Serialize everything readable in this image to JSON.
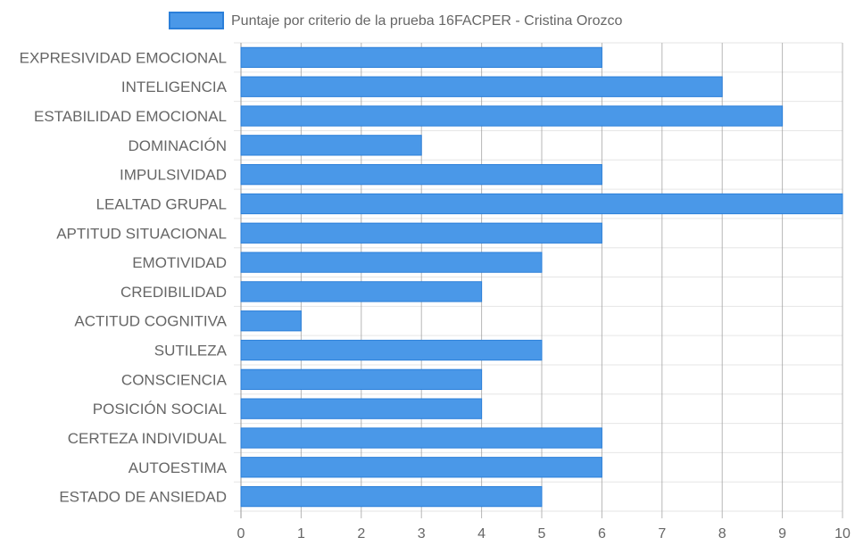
{
  "chart_data": {
    "type": "bar",
    "orientation": "horizontal",
    "title": "",
    "xlabel": "",
    "ylabel": "",
    "categories": [
      "EXPRESIVIDAD EMOCIONAL",
      "INTELIGENCIA",
      "ESTABILIDAD EMOCIONAL",
      "DOMINACIÓN",
      "IMPULSIVIDAD",
      "LEALTAD GRUPAL",
      "APTITUD SITUACIONAL",
      "EMOTIVIDAD",
      "CREDIBILIDAD",
      "ACTITUD COGNITIVA",
      "SUTILEZA",
      "CONSCIENCIA",
      "POSICIÓN SOCIAL",
      "CERTEZA INDIVIDUAL",
      "AUTOESTIMA",
      "ESTADO DE ANSIEDAD"
    ],
    "series": [
      {
        "name": "Puntaje por criterio de la prueba 16FACPER - Cristina Orozco",
        "values": [
          6,
          8,
          9,
          3,
          6,
          10,
          6,
          5,
          4,
          1,
          5,
          4,
          4,
          6,
          6,
          5
        ],
        "color": "#4a98e8",
        "border_color": "#2b7fd9"
      }
    ],
    "xlim": [
      0,
      10
    ],
    "xticks": [
      "0",
      "1",
      "2",
      "3",
      "4",
      "5",
      "6",
      "7",
      "8",
      "9",
      "10"
    ],
    "grid": true,
    "legend_position": "top-center"
  }
}
